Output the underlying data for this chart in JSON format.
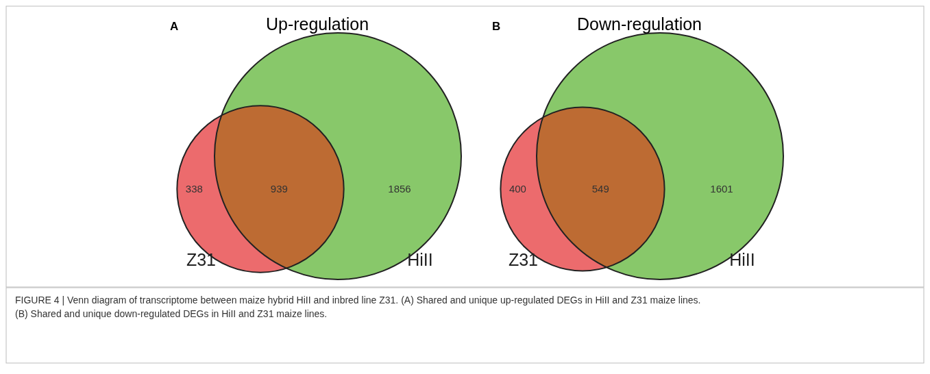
{
  "chart_data": [
    {
      "type": "other",
      "title": "Up-regulation",
      "categories": [
        "Z31",
        null,
        "HiII"
      ],
      "values": [
        338,
        939,
        1856
      ],
      "data_labels": true,
      "colors": [
        "#ec6b6d",
        "#bd6b33",
        "#88c86a"
      ],
      "annotations": [
        "A",
        "FIGURE 4 | Venn diagram of transcriptome between maize hybrid HiII and inbred line Z31. (A) Shared and unique up-regulated DEGs in HiII and Z31 maize lines.",
        "(B) Shared and unique down-regulated DEGs in HiII and Z31 maize lines."
      ]
    },
    {
      "type": "other",
      "title": "Down-regulation",
      "categories": [
        "Z31",
        null,
        "HiII"
      ],
      "values": [
        400,
        549,
        1601
      ],
      "data_labels": true,
      "colors": [
        "#ec6b6d",
        "#bd6b33",
        "#88c86a"
      ],
      "annotations": [
        "B"
      ]
    }
  ]
}
